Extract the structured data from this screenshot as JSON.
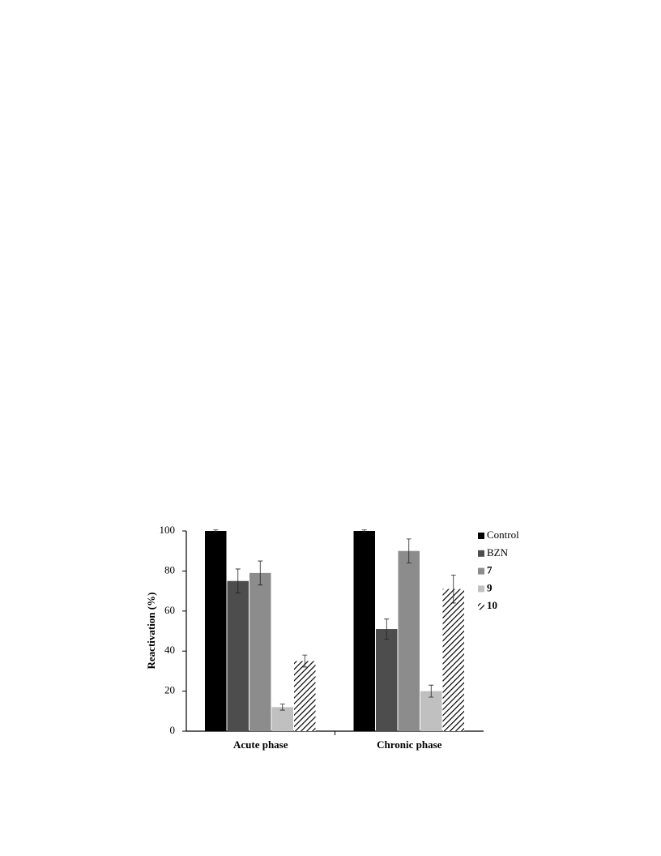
{
  "chart_data": {
    "type": "bar",
    "ylabel": "Reactivation (%)",
    "categories": [
      "Acute phase",
      "Chronic phase"
    ],
    "series": [
      {
        "name": "Control",
        "color": "#000000",
        "values": [
          100,
          100
        ],
        "errors": [
          0.5,
          0.5
        ]
      },
      {
        "name": "BZN",
        "color": "#4d4d4d",
        "values": [
          75,
          51
        ],
        "errors": [
          6,
          5
        ]
      },
      {
        "name": "7",
        "color": "#8c8c8c",
        "values": [
          79,
          90
        ],
        "errors": [
          6,
          6
        ]
      },
      {
        "name": "9",
        "color": "#c0c0c0",
        "values": [
          12,
          20
        ],
        "errors": [
          1.5,
          3
        ]
      },
      {
        "name": "10",
        "color": "#000000",
        "hatch": true,
        "values": [
          35,
          71
        ],
        "errors": [
          3,
          7
        ]
      }
    ],
    "ylim": [
      0,
      100
    ],
    "yticks": [
      0,
      20,
      40,
      60,
      80,
      100
    ],
    "grid": false,
    "legend": "right"
  }
}
